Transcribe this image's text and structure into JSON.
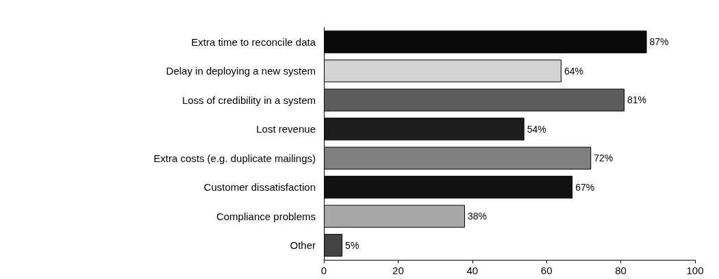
{
  "chart_data": {
    "type": "bar",
    "orientation": "horizontal",
    "categories": [
      "Extra time to reconcile data",
      "Delay in deploying a new system",
      "Loss of credibility in a system",
      "Lost revenue",
      "Extra costs (e.g. duplicate mailings)",
      "Customer dissatisfaction",
      "Compliance problems",
      "Other"
    ],
    "values": [
      87,
      64,
      81,
      54,
      72,
      67,
      38,
      5
    ],
    "colors": [
      "#0a0a0a",
      "#d4d4d4",
      "#5c5c5c",
      "#1c1c1c",
      "#808080",
      "#121212",
      "#a8a8a8",
      "#444444"
    ],
    "value_labels": [
      "87%",
      "64%",
      "81%",
      "54%",
      "72%",
      "67%",
      "38%",
      "5%"
    ],
    "xlim": [
      0,
      100
    ],
    "xticks": [
      0,
      20,
      40,
      60,
      80,
      100
    ],
    "grid": false
  }
}
